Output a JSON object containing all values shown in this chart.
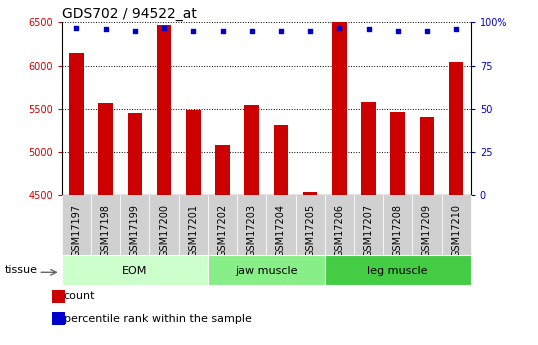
{
  "title": "GDS702 / 94522_at",
  "samples": [
    "GSM17197",
    "GSM17198",
    "GSM17199",
    "GSM17200",
    "GSM17201",
    "GSM17202",
    "GSM17203",
    "GSM17204",
    "GSM17205",
    "GSM17206",
    "GSM17207",
    "GSM17208",
    "GSM17209",
    "GSM17210"
  ],
  "counts": [
    6150,
    5560,
    5450,
    6470,
    5490,
    5080,
    5540,
    5310,
    4530,
    6500,
    5580,
    5460,
    5400,
    6040
  ],
  "percentiles": [
    97,
    96,
    95,
    97,
    95,
    95,
    95,
    95,
    95,
    97,
    96,
    95,
    95,
    96
  ],
  "ymin": 4500,
  "ymax": 6500,
  "yticks": [
    4500,
    5000,
    5500,
    6000,
    6500
  ],
  "right_yticks": [
    0,
    25,
    50,
    75,
    100
  ],
  "bar_color": "#cc0000",
  "dot_color": "#0000cc",
  "groups": [
    {
      "label": "EOM",
      "start": 0,
      "end": 5,
      "color": "#ccffcc"
    },
    {
      "label": "jaw muscle",
      "start": 5,
      "end": 9,
      "color": "#88ee88"
    },
    {
      "label": "leg muscle",
      "start": 9,
      "end": 14,
      "color": "#44cc44"
    }
  ],
  "tissue_label": "tissue",
  "legend_count_label": "count",
  "legend_pct_label": "percentile rank within the sample",
  "title_fontsize": 10,
  "tick_fontsize": 7,
  "bar_width": 0.5
}
